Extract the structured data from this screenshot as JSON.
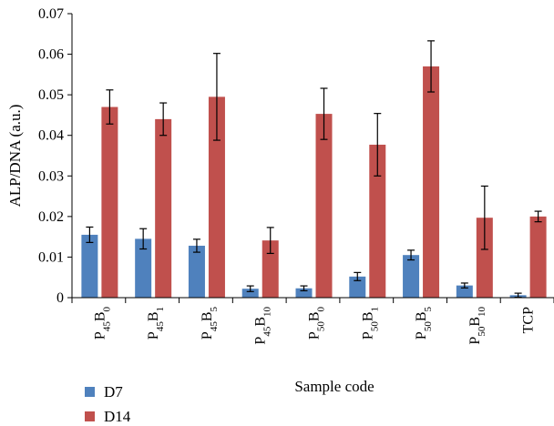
{
  "chart_data": {
    "type": "bar",
    "xlabel": "Sample code",
    "ylabel": "ALP/DNA (a.u.)",
    "ylim": [
      0,
      0.07
    ],
    "yticks": [
      "0",
      "0.01",
      "0.02",
      "0.03",
      "0.04",
      "0.05",
      "0.06",
      "0.07"
    ],
    "grid": false,
    "legend_position": "bottom-left",
    "categories": [
      {
        "base": "P",
        "sub1": "45",
        "mid": "B",
        "sub2": "0"
      },
      {
        "base": "P",
        "sub1": "45",
        "mid": "B",
        "sub2": "1"
      },
      {
        "base": "P",
        "sub1": "45",
        "mid": "B",
        "sub2": "5"
      },
      {
        "base": "P",
        "sub1": "45",
        "mid": "B",
        "sub2": "10"
      },
      {
        "base": "P",
        "sub1": "50",
        "mid": "B",
        "sub2": "0"
      },
      {
        "base": "P",
        "sub1": "50",
        "mid": "B",
        "sub2": "1"
      },
      {
        "base": "P",
        "sub1": "50",
        "mid": "B",
        "sub2": "5"
      },
      {
        "base": "P",
        "sub1": "50",
        "mid": "B",
        "sub2": "10"
      },
      {
        "base": "TCP",
        "sub1": "",
        "mid": "",
        "sub2": ""
      }
    ],
    "series": [
      {
        "name": "D7",
        "color": "#4f81bd",
        "values": [
          0.0155,
          0.0145,
          0.0128,
          0.0022,
          0.0023,
          0.0052,
          0.0105,
          0.003,
          0.0006
        ],
        "errors": [
          0.0019,
          0.0025,
          0.0016,
          0.0007,
          0.0006,
          0.001,
          0.0012,
          0.0006,
          0.0005
        ]
      },
      {
        "name": "D14",
        "color": "#c0504d",
        "values": [
          0.047,
          0.044,
          0.0495,
          0.0141,
          0.0453,
          0.0377,
          0.057,
          0.0197,
          0.02
        ],
        "errors": [
          0.0042,
          0.004,
          0.0107,
          0.0032,
          0.0063,
          0.0077,
          0.0063,
          0.0078,
          0.0013
        ]
      }
    ]
  }
}
